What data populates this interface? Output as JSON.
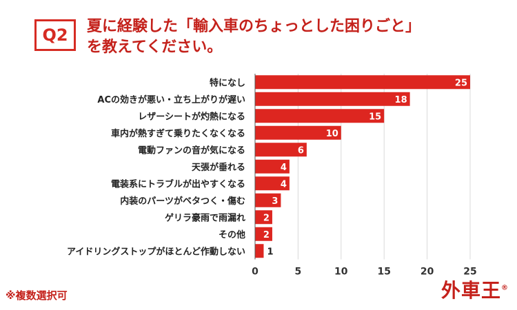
{
  "header": {
    "badge": "Q2",
    "title_line1": "夏に経験した「輸入車のちょっとした困りごと」",
    "title_line2": "を教えてください。"
  },
  "footnote": "※複数選択可",
  "brand": {
    "logo_text": "外車王",
    "mark": "®"
  },
  "colors": {
    "bar": "#dd2620",
    "title": "#c4211b",
    "grid": "#d9d9d9"
  },
  "chart_data": {
    "type": "bar",
    "orientation": "horizontal",
    "categories": [
      "特になし",
      "ACの効きが悪い・立ち上がりが遅い",
      "レザーシートが灼熱になる",
      "車内が熱すぎて乗りたくなくなる",
      "電動ファンの音が気になる",
      "天張が垂れる",
      "電装系にトラブルが出やすくなる",
      "内装のパーツがベタつく・傷む",
      "ゲリラ豪雨で雨漏れ",
      "その他",
      "アイドリングストップがほとんど作動しない"
    ],
    "values": [
      25,
      18,
      15,
      10,
      6,
      4,
      4,
      3,
      2,
      2,
      1
    ],
    "xlim": [
      0,
      25
    ],
    "xticks": [
      0,
      5,
      10,
      15,
      20,
      25
    ],
    "grid": true
  }
}
